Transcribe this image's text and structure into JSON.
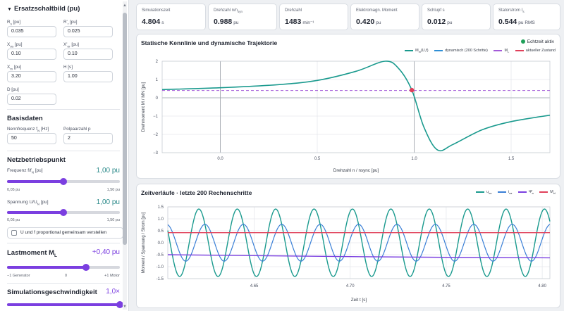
{
  "sidebar": {
    "ersatz": {
      "title": "Ersatzschaltbild (pu)",
      "fields": [
        {
          "label": "Rs [pu]",
          "value": "0.035"
        },
        {
          "label": "R'r [pu]",
          "value": "0.025"
        },
        {
          "label": "Xσs [pu]",
          "value": "0.10"
        },
        {
          "label": "X'σr [pu]",
          "value": "0.10"
        },
        {
          "label": "Xm [pu]",
          "value": "3.20"
        },
        {
          "label": "H [s]",
          "value": "1.00"
        },
        {
          "label": "D [pu]",
          "value": "0.02"
        }
      ]
    },
    "basis": {
      "title": "Basisdaten",
      "fields": [
        {
          "label": "Nennfrequenz fN [Hz]",
          "value": "50"
        },
        {
          "label": "Polpaarzahl p",
          "value": "2"
        }
      ]
    },
    "netz": {
      "title": "Netzbetriebspunkt",
      "freq_label": "Frequenz f/fN [pu]",
      "freq_value": "1,00 pu",
      "freq_level": 0.5,
      "freq_min": "0,05 pu",
      "freq_max": "1,50 pu",
      "volt_label": "Spannung U/UN [pu]",
      "volt_value": "1,00 pu",
      "volt_level": 0.5,
      "volt_min": "0,05 pu",
      "volt_max": "1,50 pu",
      "checkbox_label": "U und f proportional gemeinsam verstellen"
    },
    "last": {
      "title": "Lastmoment ML",
      "value": "+0,40 pu",
      "level": 0.7,
      "min": "−1 Generator",
      "mid": "0",
      "max": "+1 Motor"
    },
    "sim": {
      "title": "Simulationsgeschwindigkeit",
      "value": "1,0×",
      "level": 1.0
    }
  },
  "metrics": [
    {
      "label": "Simulationszeit",
      "value": "4.804",
      "unit": "s"
    },
    {
      "label": "Drehzahl n/nsyn",
      "value": "0.988",
      "unit": "pu"
    },
    {
      "label": "Drehzahl",
      "value": "1483",
      "unit": "min⁻¹"
    },
    {
      "label": "Elektromagn. Moment",
      "value": "0.420",
      "unit": "pu"
    },
    {
      "label": "Schlupf s",
      "value": "0.012",
      "unit": "pu"
    },
    {
      "label": "Statorstrom Is",
      "value": "0.544",
      "unit": "pu RMS"
    }
  ],
  "panel1": {
    "title": "Statische Kennlinie und dynamische Trajektorie",
    "live_label": "Echtzeit aktiv",
    "legend": [
      "Mel(U,f)",
      "dynamisch (200 Schritte)",
      "ML",
      "aktueller Zustand"
    ],
    "colors": {
      "static": "#1a9a8e",
      "dynamic": "#2f8fd6",
      "load": "#a35ad8",
      "state": "#e0405a"
    }
  },
  "panel2": {
    "title": "Zeitverläufe · letzte 200 Rechenschritte",
    "legend": [
      "usa",
      "isa",
      "Ψ̄a",
      "Mel"
    ],
    "colors": {
      "usa": "#1a9a8e",
      "isa": "#3a7fd6",
      "psi": "#7b3fe0",
      "mel": "#e0405a"
    }
  },
  "chart_data": [
    {
      "type": "line",
      "title": "Statische Kennlinie und dynamische Trajektorie",
      "xlabel": "Drehzahl n / nsync [pu]",
      "ylabel": "Drehmoment M / MN [pu]",
      "xlim": [
        -0.3,
        1.7
      ],
      "ylim": [
        -3,
        2
      ],
      "xticks": [
        "0.0",
        "0.5",
        "1.0",
        "1.5"
      ],
      "yticks": [
        "2",
        "1",
        "0",
        "−1",
        "−2",
        "−3"
      ],
      "grid": true,
      "legend_position": "top-right",
      "series": [
        {
          "name": "Mel(U,f)",
          "x": [
            -0.3,
            0.0,
            0.3,
            0.5,
            0.7,
            0.85,
            0.92,
            0.988,
            1.05,
            1.12,
            1.2,
            1.35,
            1.5,
            1.7
          ],
          "y": [
            0.45,
            0.55,
            0.72,
            0.95,
            1.45,
            2.0,
            1.6,
            0.42,
            -1.6,
            -2.85,
            -2.55,
            -1.75,
            -1.3,
            -0.95
          ]
        },
        {
          "name": "ML",
          "x": [
            -0.3,
            1.7
          ],
          "y": [
            0.4,
            0.4
          ]
        },
        {
          "name": "aktueller Zustand",
          "x": [
            0.988
          ],
          "y": [
            0.42
          ]
        }
      ]
    },
    {
      "type": "line",
      "title": "Zeitverläufe · letzte 200 Rechenschritte",
      "xlabel": "Zeit t [s]",
      "ylabel": "Moment / Spannung / Strom [pu]",
      "xlim": [
        4.605,
        4.804
      ],
      "ylim": [
        -1.5,
        1.5
      ],
      "xticks": [
        "4.65",
        "4.70",
        "4.75",
        "4.80"
      ],
      "yticks": [
        "1.5",
        "1.0",
        "0.5",
        "0.0",
        "-0.5",
        "-1.0",
        "-1.5"
      ],
      "grid": true,
      "legend_position": "top-right",
      "series": [
        {
          "name": "usa",
          "kind": "sine",
          "amplitude": 1.41,
          "frequency_hz": 50,
          "offset": 0.0
        },
        {
          "name": "isa",
          "kind": "sine",
          "amplitude": 0.77,
          "frequency_hz": 50,
          "offset": 0.0
        },
        {
          "name": "Ψ̄a",
          "x": [
            4.605,
            4.65,
            4.7,
            4.75,
            4.804
          ],
          "y": [
            -0.5,
            -0.54,
            -0.58,
            -0.61,
            -0.63
          ]
        },
        {
          "name": "Mel",
          "x": [
            4.605,
            4.804
          ],
          "y": [
            0.42,
            0.42
          ]
        }
      ]
    }
  ]
}
